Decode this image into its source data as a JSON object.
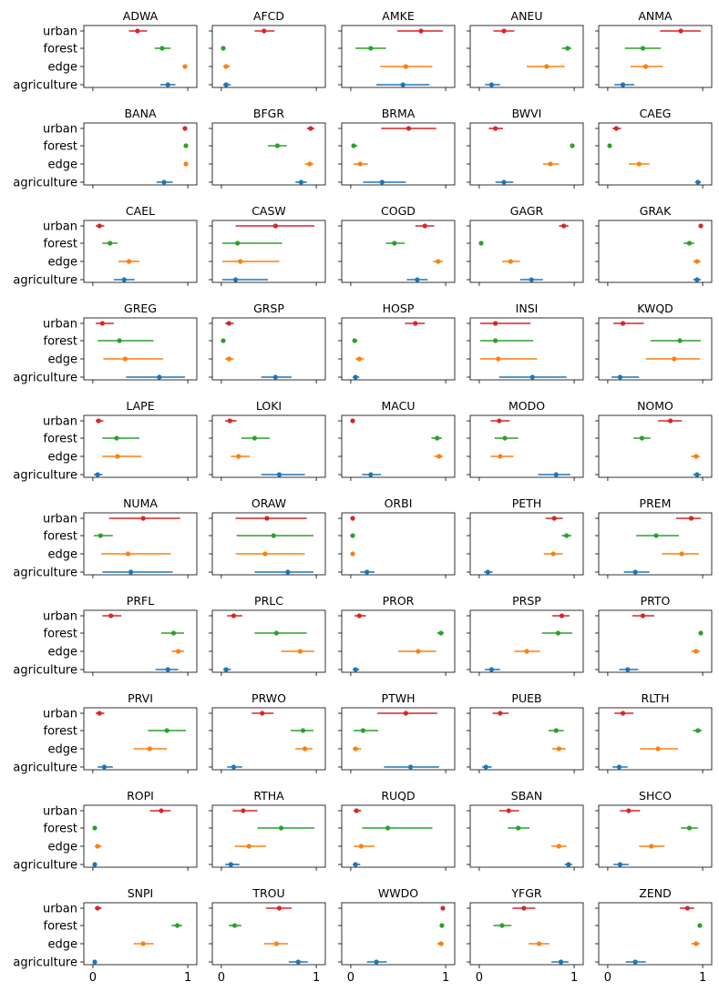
{
  "chart_data": {
    "type": "scatter",
    "categories": [
      "urban",
      "forest",
      "edge",
      "agriculture"
    ],
    "colors": {
      "urban": "#d62728",
      "forest": "#2ca02c",
      "edge": "#ff7f0e",
      "agriculture": "#1f77b4"
    },
    "xlim": [
      0,
      1
    ],
    "xticks": [
      "0",
      "1"
    ],
    "grid": false,
    "value_format": "[estimate, lower, upper]",
    "panels": [
      {
        "title": "ADWA",
        "urban": [
          0.47,
          0.38,
          0.57
        ],
        "forest": [
          0.73,
          0.65,
          0.82
        ],
        "edge": [
          0.97,
          0.95,
          0.99
        ],
        "agriculture": [
          0.79,
          0.71,
          0.87
        ]
      },
      {
        "title": "AFCD",
        "urban": [
          0.45,
          0.35,
          0.56
        ],
        "forest": [
          0.02,
          0.01,
          0.03
        ],
        "edge": [
          0.05,
          0.02,
          0.09
        ],
        "agriculture": [
          0.05,
          0.02,
          0.1
        ]
      },
      {
        "title": "AMKE",
        "urban": [
          0.74,
          0.49,
          0.97
        ],
        "forest": [
          0.21,
          0.05,
          0.37
        ],
        "edge": [
          0.58,
          0.31,
          0.86
        ],
        "agriculture": [
          0.55,
          0.27,
          0.83
        ]
      },
      {
        "title": "ANEU",
        "urban": [
          0.26,
          0.15,
          0.37
        ],
        "forest": [
          0.93,
          0.87,
          0.97
        ],
        "edge": [
          0.71,
          0.5,
          0.9
        ],
        "agriculture": [
          0.13,
          0.06,
          0.22
        ]
      },
      {
        "title": "ANMA",
        "urban": [
          0.77,
          0.55,
          0.98
        ],
        "forest": [
          0.37,
          0.18,
          0.56
        ],
        "edge": [
          0.4,
          0.24,
          0.58
        ],
        "agriculture": [
          0.16,
          0.07,
          0.28
        ]
      },
      {
        "title": "BANA",
        "urban": [
          0.97,
          0.95,
          0.99
        ],
        "forest": [
          0.98,
          0.97,
          0.99
        ],
        "edge": [
          0.98,
          0.97,
          0.99
        ],
        "agriculture": [
          0.75,
          0.67,
          0.84
        ]
      },
      {
        "title": "BFGR",
        "urban": [
          0.94,
          0.9,
          0.98
        ],
        "forest": [
          0.59,
          0.49,
          0.69
        ],
        "edge": [
          0.93,
          0.88,
          0.97
        ],
        "agriculture": [
          0.84,
          0.78,
          0.9
        ]
      },
      {
        "title": "BRMA",
        "urban": [
          0.61,
          0.32,
          0.9
        ],
        "forest": [
          0.03,
          0.01,
          0.07
        ],
        "edge": [
          0.1,
          0.03,
          0.18
        ],
        "agriculture": [
          0.33,
          0.13,
          0.58
        ]
      },
      {
        "title": "BWVI",
        "urban": [
          0.17,
          0.1,
          0.25
        ],
        "forest": [
          0.98,
          0.97,
          0.99
        ],
        "edge": [
          0.75,
          0.67,
          0.84
        ],
        "agriculture": [
          0.26,
          0.17,
          0.36
        ]
      },
      {
        "title": "CAEG",
        "urban": [
          0.09,
          0.05,
          0.14
        ],
        "forest": [
          0.02,
          0.01,
          0.03
        ],
        "edge": [
          0.33,
          0.22,
          0.44
        ],
        "agriculture": [
          0.95,
          0.92,
          0.98
        ]
      },
      {
        "title": "CAEL",
        "urban": [
          0.07,
          0.03,
          0.12
        ],
        "forest": [
          0.18,
          0.1,
          0.26
        ],
        "edge": [
          0.38,
          0.27,
          0.49
        ],
        "agriculture": [
          0.33,
          0.22,
          0.44
        ]
      },
      {
        "title": "CASW",
        "urban": [
          0.57,
          0.15,
          0.98
        ],
        "forest": [
          0.17,
          0.01,
          0.64
        ],
        "edge": [
          0.2,
          0.01,
          0.61
        ],
        "agriculture": [
          0.15,
          0.01,
          0.49
        ]
      },
      {
        "title": "COGD",
        "urban": [
          0.78,
          0.68,
          0.88
        ],
        "forest": [
          0.46,
          0.37,
          0.57
        ],
        "edge": [
          0.92,
          0.87,
          0.97
        ],
        "agriculture": [
          0.7,
          0.59,
          0.81
        ]
      },
      {
        "title": "GAGR",
        "urban": [
          0.89,
          0.84,
          0.94
        ],
        "forest": [
          0.02,
          0.01,
          0.03
        ],
        "edge": [
          0.33,
          0.24,
          0.43
        ],
        "agriculture": [
          0.55,
          0.43,
          0.67
        ]
      },
      {
        "title": "GRAK",
        "urban": [
          0.98,
          0.97,
          0.99
        ],
        "forest": [
          0.86,
          0.8,
          0.91
        ],
        "edge": [
          0.94,
          0.9,
          0.98
        ],
        "agriculture": [
          0.94,
          0.9,
          0.98
        ]
      },
      {
        "title": "GREG",
        "urban": [
          0.1,
          0.03,
          0.22
        ],
        "forest": [
          0.28,
          0.05,
          0.64
        ],
        "edge": [
          0.34,
          0.11,
          0.74
        ],
        "agriculture": [
          0.7,
          0.35,
          0.97
        ]
      },
      {
        "title": "GRSP",
        "urban": [
          0.08,
          0.04,
          0.13
        ],
        "forest": [
          0.02,
          0.01,
          0.03
        ],
        "edge": [
          0.08,
          0.04,
          0.13
        ],
        "agriculture": [
          0.57,
          0.42,
          0.74
        ]
      },
      {
        "title": "HOSP",
        "urban": [
          0.68,
          0.57,
          0.78
        ],
        "forest": [
          0.04,
          0.02,
          0.07
        ],
        "edge": [
          0.09,
          0.05,
          0.14
        ],
        "agriculture": [
          0.05,
          0.02,
          0.09
        ]
      },
      {
        "title": "INSI",
        "urban": [
          0.17,
          0.01,
          0.54
        ],
        "forest": [
          0.17,
          0.01,
          0.57
        ],
        "edge": [
          0.2,
          0.01,
          0.61
        ],
        "agriculture": [
          0.56,
          0.21,
          0.92
        ]
      },
      {
        "title": "KWQD",
        "urban": [
          0.16,
          0.06,
          0.38
        ],
        "forest": [
          0.76,
          0.45,
          0.98
        ],
        "edge": [
          0.7,
          0.4,
          0.97
        ],
        "agriculture": [
          0.13,
          0.04,
          0.33
        ]
      },
      {
        "title": "LAPE",
        "urban": [
          0.06,
          0.03,
          0.11
        ],
        "forest": [
          0.25,
          0.1,
          0.49
        ],
        "edge": [
          0.26,
          0.1,
          0.51
        ],
        "agriculture": [
          0.05,
          0.01,
          0.1
        ]
      },
      {
        "title": "LOKI",
        "urban": [
          0.09,
          0.04,
          0.16
        ],
        "forest": [
          0.35,
          0.21,
          0.51
        ],
        "edge": [
          0.18,
          0.1,
          0.3
        ],
        "agriculture": [
          0.61,
          0.42,
          0.88
        ]
      },
      {
        "title": "MACU",
        "urban": [
          0.02,
          0.01,
          0.04
        ],
        "forest": [
          0.91,
          0.85,
          0.96
        ],
        "edge": [
          0.93,
          0.88,
          0.97
        ],
        "agriculture": [
          0.21,
          0.12,
          0.32
        ]
      },
      {
        "title": "MODO",
        "urban": [
          0.21,
          0.12,
          0.32
        ],
        "forest": [
          0.27,
          0.16,
          0.41
        ],
        "edge": [
          0.22,
          0.12,
          0.36
        ],
        "agriculture": [
          0.81,
          0.62,
          0.96
        ]
      },
      {
        "title": "NOMO",
        "urban": [
          0.66,
          0.53,
          0.78
        ],
        "forest": [
          0.36,
          0.27,
          0.45
        ],
        "edge": [
          0.93,
          0.88,
          0.97
        ],
        "agriculture": [
          0.94,
          0.9,
          0.98
        ]
      },
      {
        "title": "NUMA",
        "urban": [
          0.53,
          0.17,
          0.92
        ],
        "forest": [
          0.08,
          0.01,
          0.21
        ],
        "edge": [
          0.37,
          0.09,
          0.82
        ],
        "agriculture": [
          0.4,
          0.1,
          0.84
        ]
      },
      {
        "title": "ORAW",
        "urban": [
          0.48,
          0.15,
          0.9
        ],
        "forest": [
          0.55,
          0.16,
          0.97
        ],
        "edge": [
          0.46,
          0.15,
          0.88
        ],
        "agriculture": [
          0.7,
          0.35,
          0.97
        ]
      },
      {
        "title": "ORBI",
        "urban": [
          0.02,
          0.01,
          0.04
        ],
        "forest": [
          0.02,
          0.01,
          0.03
        ],
        "edge": [
          0.02,
          0.01,
          0.03
        ],
        "agriculture": [
          0.17,
          0.1,
          0.25
        ]
      },
      {
        "title": "PETH",
        "urban": [
          0.79,
          0.7,
          0.88
        ],
        "forest": [
          0.92,
          0.87,
          0.97
        ],
        "edge": [
          0.78,
          0.68,
          0.88
        ],
        "agriculture": [
          0.09,
          0.05,
          0.14
        ]
      },
      {
        "title": "PREM",
        "urban": [
          0.88,
          0.72,
          0.98
        ],
        "forest": [
          0.51,
          0.3,
          0.75
        ],
        "edge": [
          0.78,
          0.57,
          0.96
        ],
        "agriculture": [
          0.29,
          0.17,
          0.44
        ]
      },
      {
        "title": "PRFL",
        "urban": [
          0.19,
          0.1,
          0.3
        ],
        "forest": [
          0.85,
          0.72,
          0.96
        ],
        "edge": [
          0.9,
          0.83,
          0.96
        ],
        "agriculture": [
          0.79,
          0.66,
          0.9
        ]
      },
      {
        "title": "PRLC",
        "urban": [
          0.13,
          0.06,
          0.22
        ],
        "forest": [
          0.58,
          0.35,
          0.9
        ],
        "edge": [
          0.83,
          0.63,
          0.98
        ],
        "agriculture": [
          0.05,
          0.02,
          0.1
        ]
      },
      {
        "title": "PROR",
        "urban": [
          0.09,
          0.04,
          0.16
        ],
        "forest": [
          0.95,
          0.91,
          0.98
        ],
        "edge": [
          0.71,
          0.5,
          0.9
        ],
        "agriculture": [
          0.05,
          0.02,
          0.09
        ]
      },
      {
        "title": "PRSP",
        "urban": [
          0.87,
          0.77,
          0.95
        ],
        "forest": [
          0.83,
          0.66,
          0.98
        ],
        "edge": [
          0.5,
          0.37,
          0.64
        ],
        "agriculture": [
          0.13,
          0.06,
          0.22
        ]
      },
      {
        "title": "PRTO",
        "urban": [
          0.37,
          0.26,
          0.49
        ],
        "forest": [
          0.98,
          0.97,
          0.99
        ],
        "edge": [
          0.93,
          0.88,
          0.97
        ],
        "agriculture": [
          0.21,
          0.12,
          0.32
        ]
      },
      {
        "title": "PRVI",
        "urban": [
          0.07,
          0.03,
          0.12
        ],
        "forest": [
          0.78,
          0.58,
          0.98
        ],
        "edge": [
          0.6,
          0.43,
          0.78
        ],
        "agriculture": [
          0.12,
          0.05,
          0.21
        ]
      },
      {
        "title": "PRWO",
        "urban": [
          0.43,
          0.32,
          0.55
        ],
        "forest": [
          0.86,
          0.73,
          0.97
        ],
        "edge": [
          0.88,
          0.78,
          0.96
        ],
        "agriculture": [
          0.13,
          0.06,
          0.22
        ]
      },
      {
        "title": "PTWH",
        "urban": [
          0.58,
          0.28,
          0.91
        ],
        "forest": [
          0.13,
          0.03,
          0.29
        ],
        "edge": [
          0.05,
          0.02,
          0.11
        ],
        "agriculture": [
          0.63,
          0.35,
          0.93
        ]
      },
      {
        "title": "PUEB",
        "urban": [
          0.22,
          0.14,
          0.31
        ],
        "forest": [
          0.81,
          0.73,
          0.89
        ],
        "edge": [
          0.84,
          0.77,
          0.91
        ],
        "agriculture": [
          0.07,
          0.03,
          0.13
        ]
      },
      {
        "title": "RLTH",
        "urban": [
          0.16,
          0.07,
          0.27
        ],
        "forest": [
          0.95,
          0.9,
          0.99
        ],
        "edge": [
          0.53,
          0.34,
          0.74
        ],
        "agriculture": [
          0.12,
          0.05,
          0.21
        ]
      },
      {
        "title": "ROPI",
        "urban": [
          0.72,
          0.6,
          0.82
        ],
        "forest": [
          0.02,
          0.01,
          0.03
        ],
        "edge": [
          0.05,
          0.02,
          0.09
        ],
        "agriculture": [
          0.02,
          0.01,
          0.04
        ]
      },
      {
        "title": "RTHA",
        "urban": [
          0.23,
          0.12,
          0.38
        ],
        "forest": [
          0.63,
          0.38,
          0.98
        ],
        "edge": [
          0.29,
          0.14,
          0.47
        ],
        "agriculture": [
          0.1,
          0.04,
          0.19
        ]
      },
      {
        "title": "RUQD",
        "urban": [
          0.06,
          0.03,
          0.11
        ],
        "forest": [
          0.39,
          0.12,
          0.86
        ],
        "edge": [
          0.11,
          0.03,
          0.25
        ],
        "agriculture": [
          0.05,
          0.02,
          0.1
        ]
      },
      {
        "title": "SBAN",
        "urban": [
          0.31,
          0.21,
          0.42
        ],
        "forest": [
          0.41,
          0.3,
          0.53
        ],
        "edge": [
          0.84,
          0.76,
          0.92
        ],
        "agriculture": [
          0.94,
          0.9,
          0.98
        ]
      },
      {
        "title": "SHCO",
        "urban": [
          0.22,
          0.13,
          0.34
        ],
        "forest": [
          0.86,
          0.77,
          0.95
        ],
        "edge": [
          0.46,
          0.33,
          0.6
        ],
        "agriculture": [
          0.13,
          0.06,
          0.22
        ]
      },
      {
        "title": "SNPI",
        "urban": [
          0.05,
          0.02,
          0.09
        ],
        "forest": [
          0.89,
          0.83,
          0.94
        ],
        "edge": [
          0.53,
          0.43,
          0.64
        ],
        "agriculture": [
          0.02,
          0.01,
          0.03
        ]
      },
      {
        "title": "TROU",
        "urban": [
          0.61,
          0.47,
          0.74
        ],
        "forest": [
          0.14,
          0.08,
          0.21
        ],
        "edge": [
          0.58,
          0.45,
          0.7
        ],
        "agriculture": [
          0.81,
          0.71,
          0.91
        ]
      },
      {
        "title": "WWDO",
        "urban": [
          0.97,
          0.95,
          0.99
        ],
        "forest": [
          0.96,
          0.94,
          0.98
        ],
        "edge": [
          0.95,
          0.91,
          0.98
        ],
        "agriculture": [
          0.27,
          0.17,
          0.38
        ]
      },
      {
        "title": "YFGR",
        "urban": [
          0.47,
          0.35,
          0.59
        ],
        "forest": [
          0.24,
          0.15,
          0.34
        ],
        "edge": [
          0.63,
          0.52,
          0.74
        ],
        "agriculture": [
          0.86,
          0.76,
          0.94
        ]
      },
      {
        "title": "ZEND",
        "urban": [
          0.84,
          0.76,
          0.91
        ],
        "forest": [
          0.97,
          0.95,
          0.99
        ],
        "edge": [
          0.93,
          0.88,
          0.97
        ],
        "agriculture": [
          0.29,
          0.19,
          0.4
        ]
      }
    ]
  }
}
